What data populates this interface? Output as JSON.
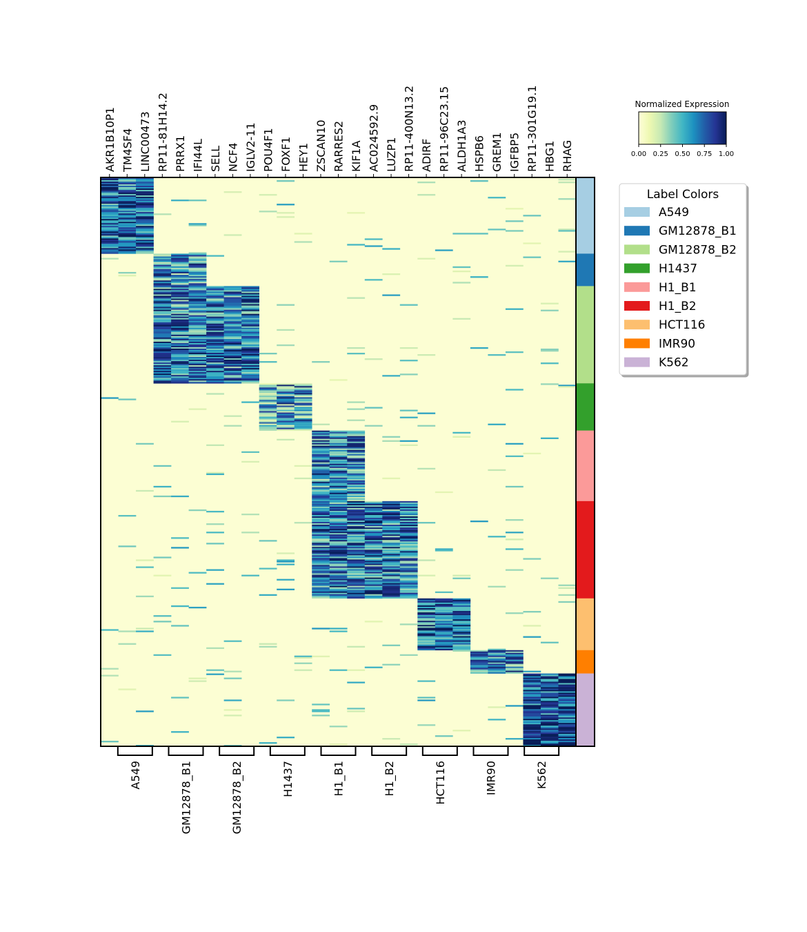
{
  "chart_data": {
    "type": "heatmap",
    "title": "",
    "genes": [
      "AKR1B10P1",
      "TM4SF4",
      "LINC00473",
      "RP11-81H14.2",
      "PRRX1",
      "IFI44L",
      "SELL",
      "NCF4",
      "IGLV2-11",
      "POU4F1",
      "FOXF1",
      "HEY1",
      "ZSCAN10",
      "RARRES2",
      "KIF1A",
      "AC024592.9",
      "LUZP1",
      "RP11-400N13.2",
      "ADIRF",
      "RP11-96C23.15",
      "ALDH1A3",
      "HSPB6",
      "GREM1",
      "IGFBP5",
      "RP11-301G19.1",
      "HBG1",
      "RHAG"
    ],
    "groups": [
      {
        "label": "A549",
        "color": "#a6cee3",
        "row_fraction": 0.134,
        "marker_genes": [
          0,
          1,
          2
        ],
        "expression_level": 0.72
      },
      {
        "label": "GM12878_B1",
        "color": "#1f78b4",
        "row_fraction": 0.057,
        "marker_genes": [
          3,
          4,
          5
        ],
        "expression_level": 0.6
      },
      {
        "label": "GM12878_B2",
        "color": "#b2df8a",
        "row_fraction": 0.171,
        "marker_genes": [
          3,
          4,
          5,
          6,
          7,
          8
        ],
        "expression_level": 0.66
      },
      {
        "label": "H1437",
        "color": "#33a02c",
        "row_fraction": 0.083,
        "marker_genes": [
          9,
          10,
          11
        ],
        "expression_level": 0.5
      },
      {
        "label": "H1_B1",
        "color": "#fb9a99",
        "row_fraction": 0.124,
        "marker_genes": [
          12,
          13,
          14
        ],
        "expression_level": 0.62
      },
      {
        "label": "H1_B2",
        "color": "#e31a1c",
        "row_fraction": 0.171,
        "marker_genes": [
          12,
          13,
          14,
          15,
          16,
          17
        ],
        "expression_level": 0.66
      },
      {
        "label": "HCT116",
        "color": "#fdbf6f",
        "row_fraction": 0.091,
        "marker_genes": [
          18,
          19,
          20
        ],
        "expression_level": 0.72
      },
      {
        "label": "IMR90",
        "color": "#ff7f00",
        "row_fraction": 0.041,
        "marker_genes": [
          21,
          22,
          23
        ],
        "expression_level": 0.6
      },
      {
        "label": "K562",
        "color": "#cab2d6",
        "row_fraction": 0.128,
        "marker_genes": [
          24,
          25,
          26
        ],
        "expression_level": 0.8
      }
    ],
    "colorbar": {
      "title": "Normalized Expression",
      "ticks": [
        "0.00",
        "0.25",
        "0.50",
        "0.75",
        "1.00"
      ],
      "range": [
        0,
        1
      ],
      "colormap": "YlGnBu"
    },
    "legend": {
      "title": "Label Colors",
      "placement": "right"
    }
  }
}
